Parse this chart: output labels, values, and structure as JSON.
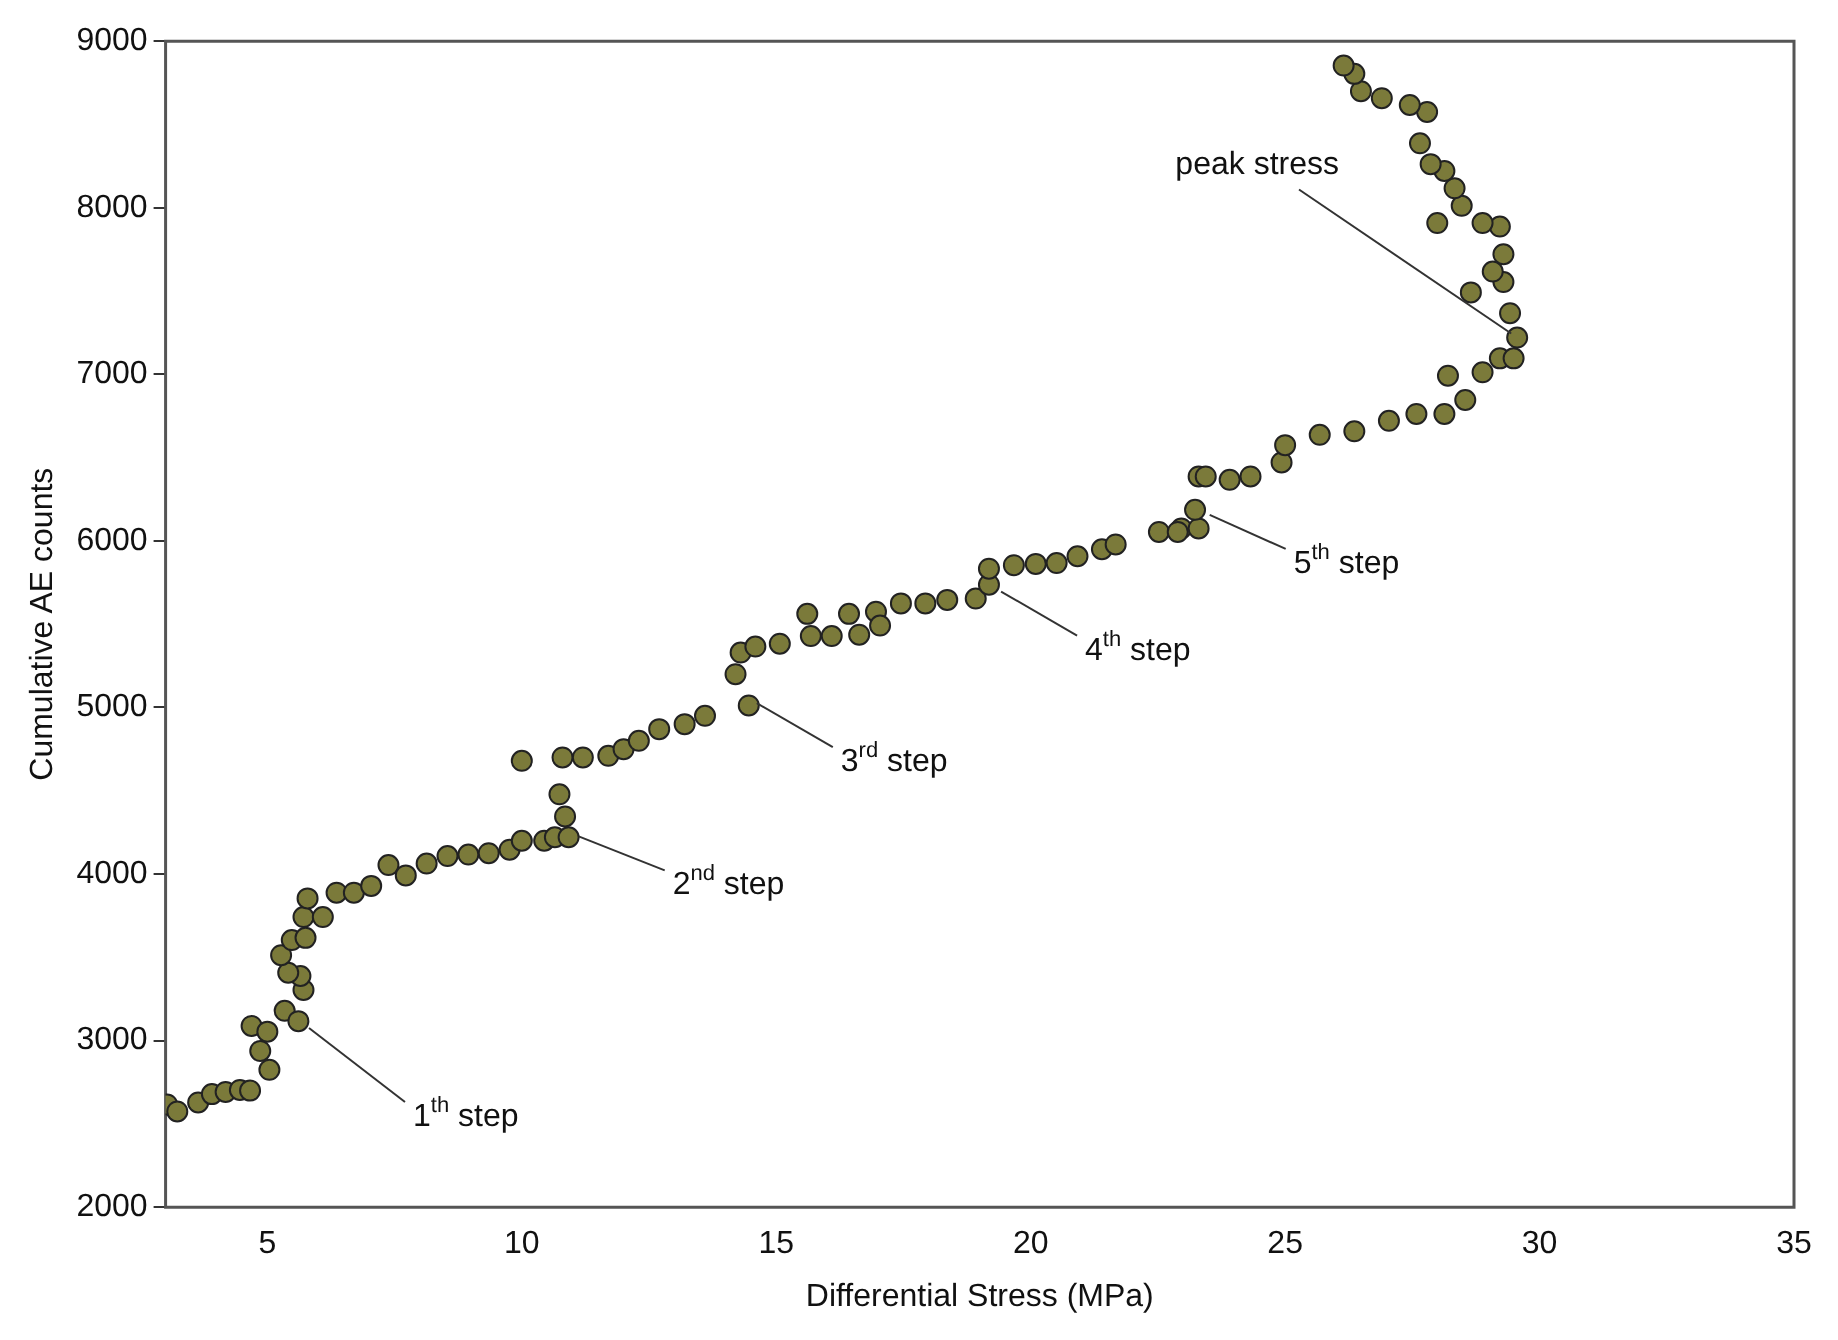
{
  "chart_data": {
    "type": "scatter",
    "xlabel": "Differential Stress (MPa)",
    "ylabel": "Cumulative AE counts",
    "xlim": [
      3,
      35
    ],
    "ylim": [
      2000,
      9000
    ],
    "xticks": [
      5,
      10,
      15,
      20,
      25,
      30,
      35
    ],
    "yticks": [
      2000,
      3000,
      4000,
      5000,
      6000,
      7000,
      8000,
      9000
    ],
    "grid": false,
    "legend": false,
    "marker": "circle",
    "series": [
      {
        "color": "#7b7a3a",
        "x": [
          3.03,
          3.23,
          3.64,
          3.91,
          4.18,
          4.46,
          4.66,
          4.69,
          4.86,
          5.04,
          5.0,
          5.34,
          5.61,
          5.71,
          5.65,
          5.41,
          5.27,
          5.48,
          5.75,
          5.71,
          5.79,
          6.09,
          6.36,
          6.7,
          7.04,
          7.38,
          7.72,
          8.13,
          8.54,
          8.95,
          9.35,
          9.76,
          10.0,
          10.44,
          10.65,
          10.92,
          10.85,
          10.74,
          10.0,
          10.8,
          11.2,
          11.7,
          12.0,
          12.3,
          12.7,
          13.2,
          13.6,
          14.2,
          14.3,
          14.46,
          14.59,
          15.07,
          15.61,
          15.68,
          16.09,
          16.43,
          16.63,
          16.96,
          17.04,
          17.45,
          17.93,
          18.36,
          18.92,
          19.18,
          19.18,
          19.67,
          20.1,
          20.51,
          20.92,
          21.4,
          21.67,
          22.52,
          22.96,
          22.89,
          23.3,
          23.23,
          23.3,
          23.44,
          23.91,
          24.32,
          24.93,
          25.0,
          25.68,
          26.36,
          27.04,
          27.58,
          28.13,
          28.54,
          28.2,
          28.88,
          29.22,
          29.49,
          29.56,
          29.42,
          28.65,
          29.29,
          29.08,
          29.29,
          29.22,
          27.99,
          28.88,
          28.47,
          28.33,
          28.13,
          27.86,
          27.65,
          27.79,
          27.45,
          26.9,
          26.49,
          26.36,
          26.15
        ],
        "values": [
          2617,
          2575,
          2629,
          2679,
          2692,
          2704,
          2700,
          3088,
          2938,
          2825,
          3054,
          3179,
          3117,
          3304,
          3388,
          3408,
          3513,
          3604,
          3617,
          3742,
          3854,
          3742,
          3888,
          3888,
          3929,
          4054,
          3992,
          4063,
          4108,
          4117,
          4125,
          4146,
          4200,
          4200,
          4221,
          4221,
          4346,
          4479,
          4680,
          4700,
          4700,
          4710,
          4750,
          4800,
          4870,
          4900,
          4950,
          5200,
          5330,
          5012,
          5366,
          5383,
          5562,
          5429,
          5429,
          5562,
          5437,
          5575,
          5492,
          5625,
          5625,
          5646,
          5654,
          5737,
          5833,
          5854,
          5862,
          5867,
          5908,
          5950,
          5979,
          6054,
          6075,
          6054,
          6075,
          6187,
          6387,
          6387,
          6367,
          6387,
          6471,
          6575,
          6637,
          6658,
          6721,
          6762,
          6762,
          6846,
          6992,
          7012,
          7096,
          7096,
          7221,
          7367,
          7492,
          7554,
          7617,
          7721,
          7887,
          7908,
          7908,
          8012,
          8117,
          8221,
          8262,
          8387,
          8575,
          8617,
          8658,
          8700,
          8804,
          8854
        ]
      }
    ],
    "annotations": [
      {
        "text": "1$^{th}$ step",
        "x": 5.7,
        "y": 3100
      },
      {
        "text": "2$^{nd}$ step",
        "x": 11,
        "y": 4250
      },
      {
        "text": "3$^{rd}$ step",
        "x": 14.5,
        "y": 5050
      },
      {
        "text": "4$^{th}$ step",
        "x": 19.3,
        "y": 5720
      },
      {
        "text": "5$^{th}$ step",
        "x": 23.4,
        "y": 6180
      },
      {
        "text": "peak stress",
        "x": 29.56,
        "y": 7221
      }
    ]
  }
}
